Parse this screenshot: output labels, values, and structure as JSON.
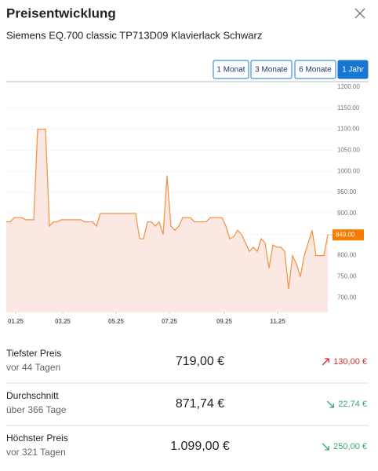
{
  "header": {
    "title": "Preisentwicklung",
    "subtitle": "Siemens EQ.700 classic TP713D09 Klavierlack Schwarz"
  },
  "range_buttons": {
    "labels": [
      "1 Monat",
      "3 Monate",
      "6 Monate",
      "1 Jahr"
    ],
    "active": 3
  },
  "chart_data": {
    "type": "area",
    "color": "#f5964a",
    "fill_color": "#fbe8e2",
    "values": [
      880,
      880,
      890,
      890,
      890,
      885,
      885,
      885,
      1100,
      1100,
      1100,
      870,
      880,
      880,
      885,
      885,
      885,
      885,
      885,
      885,
      880,
      880,
      880,
      870,
      900,
      900,
      900,
      900,
      900,
      900,
      900,
      900,
      900,
      900,
      840,
      840,
      880,
      880,
      870,
      880,
      850,
      990,
      870,
      860,
      870,
      890,
      890,
      890,
      880,
      880,
      880,
      880,
      890,
      890,
      890,
      890,
      870,
      840,
      845,
      860,
      850,
      830,
      810,
      820,
      810,
      840,
      830,
      770,
      825,
      820,
      820,
      810,
      720,
      800,
      780,
      750,
      800,
      830,
      860,
      800,
      800,
      800,
      849
    ],
    "xlim": [
      0,
      82
    ],
    "xticks": [
      {
        "value": 2.4,
        "label": "01.25"
      },
      {
        "value": 14.4,
        "label": "03.25"
      },
      {
        "value": 28,
        "label": "05.25"
      },
      {
        "value": 41.6,
        "label": "07.25"
      },
      {
        "value": 55.6,
        "label": "09.25"
      },
      {
        "value": 69.2,
        "label": "11.25"
      }
    ],
    "ylim": [
      665,
      1211
    ],
    "yticks": [
      {
        "value": 700,
        "label": "700.00"
      },
      {
        "value": 750,
        "label": "750.00"
      },
      {
        "value": 800,
        "label": "800.00"
      },
      {
        "value": 850,
        "label": "850.00"
      },
      {
        "value": 900,
        "label": "900.00"
      },
      {
        "value": 950,
        "label": "950.00"
      },
      {
        "value": 1000,
        "label": "1000.00"
      },
      {
        "value": 1050,
        "label": "1050.00"
      },
      {
        "value": 1100,
        "label": "1100.00"
      },
      {
        "value": 1150,
        "label": "1150.00"
      },
      {
        "value": 1200,
        "label": "1200.00"
      }
    ],
    "current_value": {
      "value": 849,
      "label": "849.00"
    }
  },
  "stats": [
    {
      "label": "Tiefster Preis",
      "sublabel": "vor 44 Tagen",
      "price": "719,00 €",
      "change": "130,00 €",
      "direction": "up"
    },
    {
      "label": "Durchschnitt",
      "sublabel": "über 366 Tage",
      "price": "871,74 €",
      "change": "22,74 €",
      "direction": "down"
    },
    {
      "label": "Höchster Preis",
      "sublabel": "vor 321 Tagen",
      "price": "1.099,00 €",
      "change": "250,00 €",
      "direction": "down"
    }
  ]
}
